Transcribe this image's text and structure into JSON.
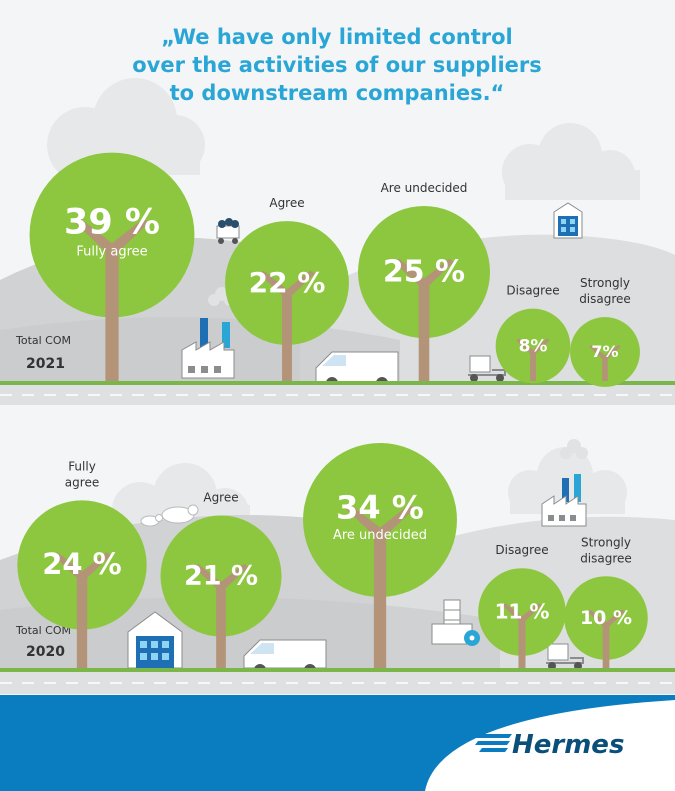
{
  "title_lines": [
    "„We have only limited control",
    "over the activities of our suppliers",
    "to downstream companies.“"
  ],
  "colors": {
    "title": "#2aa6d6",
    "tree": "#8dc63f",
    "trunk": "#b39478",
    "hill": "#d0d2d3",
    "hill_light": "#e3e4e5",
    "ground": "#7ab648",
    "road": "#dfe0e1",
    "sky": "#f2f3f4",
    "footer": "#0a7cc0"
  },
  "brand": "Hermes",
  "chart_data": [
    {
      "type": "bubble",
      "group": "Total COM",
      "year": "2021",
      "categories": [
        "Fully agree",
        "Agree",
        "Are undecided",
        "Disagree",
        "Strongly disagree"
      ],
      "values": [
        39,
        22,
        25,
        8,
        7
      ],
      "value_labels": [
        "39 %",
        "22 %",
        "25 %",
        "8%",
        "7%"
      ]
    },
    {
      "type": "bubble",
      "group": "Total COM",
      "year": "2020",
      "categories": [
        "Fully agree",
        "Agree",
        "Are undecided",
        "Disagree",
        "Strongly disagree"
      ],
      "values": [
        24,
        21,
        34,
        11,
        10
      ],
      "value_labels": [
        "24 %",
        "21 %",
        "34 %",
        "11 %",
        "10 %"
      ]
    }
  ]
}
